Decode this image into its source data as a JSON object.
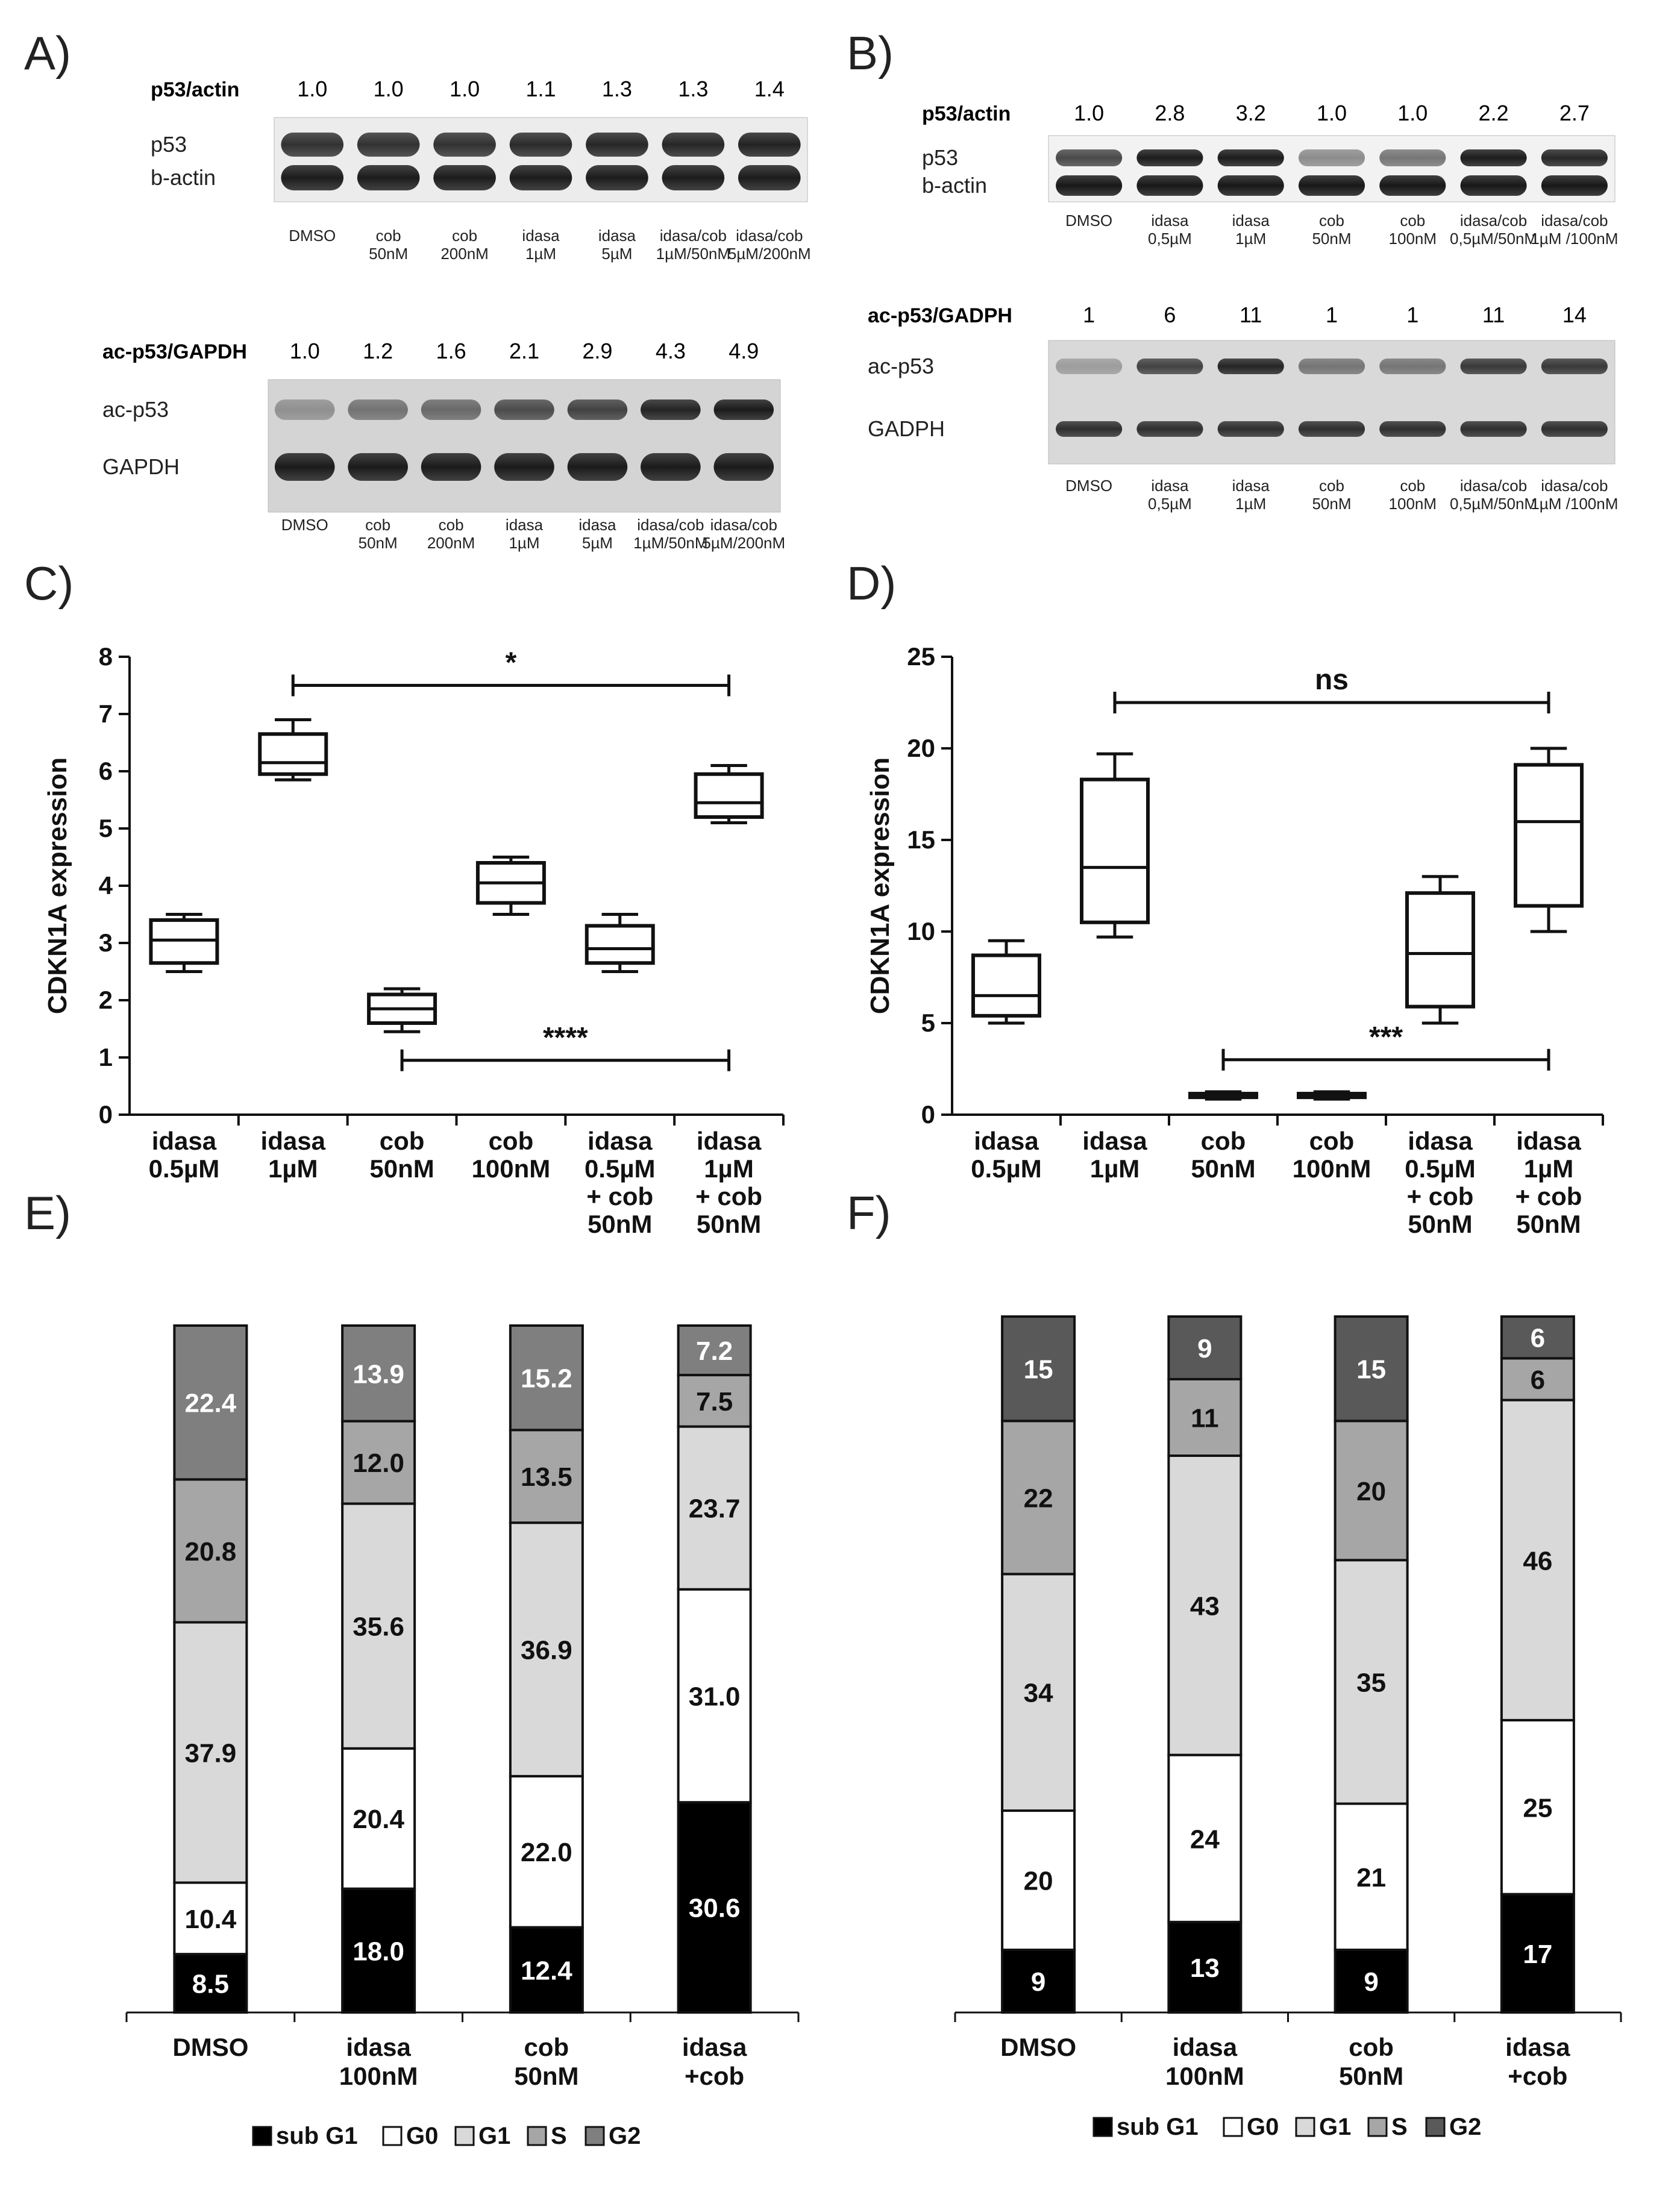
{
  "panels": {
    "A": {
      "letter": "A)",
      "blot1": {
        "ratio_label": "p53/actin",
        "ratios": [
          "1.0",
          "1.0",
          "1.0",
          "1.1",
          "1.3",
          "1.3",
          "1.4"
        ],
        "bands": [
          "p53",
          "b-actin"
        ],
        "lanes": [
          [
            "DMSO"
          ],
          [
            "cob",
            "50nM"
          ],
          [
            "cob",
            "200nM"
          ],
          [
            "idasa",
            "1µM"
          ],
          [
            "idasa",
            "5µM"
          ],
          [
            "idasa/cob",
            "1µM/50nM"
          ],
          [
            "idasa/cob",
            "5µM/200nM"
          ]
        ]
      },
      "blot2": {
        "ratio_label": "ac-p53/GAPDH",
        "ratios": [
          "1.0",
          "1.2",
          "1.6",
          "2.1",
          "2.9",
          "4.3",
          "4.9"
        ],
        "bands": [
          "ac-p53",
          "GAPDH"
        ],
        "lanes": [
          [
            "DMSO"
          ],
          [
            "cob",
            "50nM"
          ],
          [
            "cob",
            "200nM"
          ],
          [
            "idasa",
            "1µM"
          ],
          [
            "idasa",
            "5µM"
          ],
          [
            "idasa/cob",
            "1µM/50nM"
          ],
          [
            "idasa/cob",
            "5µM/200nM"
          ]
        ]
      }
    },
    "B": {
      "letter": "B)",
      "blot1": {
        "ratio_label": "p53/actin",
        "ratios": [
          "1.0",
          "2.8",
          "3.2",
          "1.0",
          "1.0",
          "2.2",
          "2.7"
        ],
        "bands": [
          "p53",
          "b-actin"
        ],
        "lanes": [
          [
            "DMSO"
          ],
          [
            "idasa",
            "0,5µM"
          ],
          [
            "idasa",
            "1µM"
          ],
          [
            "cob",
            "50nM"
          ],
          [
            "cob",
            "100nM"
          ],
          [
            "idasa/cob",
            "0,5µM/50nM"
          ],
          [
            "idasa/cob",
            "1µM /100nM"
          ]
        ]
      },
      "blot2": {
        "ratio_label": "ac-p53/GADPH",
        "ratios": [
          "1",
          "6",
          "11",
          "1",
          "1",
          "11",
          "14"
        ],
        "bands": [
          "ac-p53",
          "GADPH"
        ],
        "lanes": [
          [
            "DMSO"
          ],
          [
            "idasa",
            "0,5µM"
          ],
          [
            "idasa",
            "1µM"
          ],
          [
            "cob",
            "50nM"
          ],
          [
            "cob",
            "100nM"
          ],
          [
            "idasa/cob",
            "0,5µM/50nM"
          ],
          [
            "idasa/cob",
            "1µM /100nM"
          ]
        ]
      }
    },
    "C_letter": "C)",
    "D_letter": "D)",
    "E_letter": "E)",
    "F_letter": "F)"
  },
  "chart_data": [
    {
      "id": "C",
      "type": "boxplot",
      "ylabel": "CDKN1A expression",
      "ylim": [
        0,
        8
      ],
      "yticks": [
        0,
        1,
        2,
        3,
        4,
        5,
        6,
        7,
        8
      ],
      "categories": [
        [
          "idasa",
          "0.5µM"
        ],
        [
          "idasa",
          "1µM"
        ],
        [
          "cob",
          "50nM"
        ],
        [
          "cob",
          "100nM"
        ],
        [
          "idasa",
          "0.5µM",
          "+ cob",
          "50nM"
        ],
        [
          "idasa",
          "1µM",
          "+ cob",
          "50nM"
        ]
      ],
      "boxes": [
        {
          "min": 2.5,
          "q1": 2.65,
          "median": 3.05,
          "q3": 3.4,
          "max": 3.5
        },
        {
          "min": 5.85,
          "q1": 5.95,
          "median": 6.15,
          "q3": 6.65,
          "max": 6.9
        },
        {
          "min": 1.45,
          "q1": 1.6,
          "median": 1.85,
          "q3": 2.1,
          "max": 2.2
        },
        {
          "min": 3.5,
          "q1": 3.7,
          "median": 4.05,
          "q3": 4.4,
          "max": 4.5
        },
        {
          "min": 2.5,
          "q1": 2.65,
          "median": 2.9,
          "q3": 3.3,
          "max": 3.5
        },
        {
          "min": 5.1,
          "q1": 5.2,
          "median": 5.45,
          "q3": 5.95,
          "max": 6.1
        }
      ],
      "brackets": [
        {
          "from": 1,
          "to": 5,
          "y": 7.5,
          "label": "*"
        },
        {
          "from": 2,
          "to": 5,
          "y": 0.95,
          "label": "****"
        }
      ]
    },
    {
      "id": "D",
      "type": "boxplot",
      "ylabel": "CDKN1A expression",
      "ylim": [
        0,
        25
      ],
      "yticks": [
        0,
        5,
        10,
        15,
        20,
        25
      ],
      "categories": [
        [
          "idasa",
          "0.5µM"
        ],
        [
          "idasa",
          "1µM"
        ],
        [
          "cob",
          "50nM"
        ],
        [
          "cob",
          "100nM"
        ],
        [
          "idasa",
          "0.5µM",
          "+ cob",
          "50nM"
        ],
        [
          "idasa",
          "1µM",
          "+ cob",
          "50nM"
        ]
      ],
      "boxes": [
        {
          "min": 5.0,
          "q1": 5.4,
          "median": 6.5,
          "q3": 8.7,
          "max": 9.5
        },
        {
          "min": 9.7,
          "q1": 10.5,
          "median": 13.5,
          "q3": 18.3,
          "max": 19.7
        },
        {
          "min": 0.85,
          "q1": 0.95,
          "median": 1.05,
          "q3": 1.15,
          "max": 1.25
        },
        {
          "min": 0.85,
          "q1": 0.95,
          "median": 1.05,
          "q3": 1.15,
          "max": 1.25
        },
        {
          "min": 5.0,
          "q1": 5.9,
          "median": 8.8,
          "q3": 12.1,
          "max": 13.0
        },
        {
          "min": 10.0,
          "q1": 11.4,
          "median": 16.0,
          "q3": 19.1,
          "max": 20.0
        }
      ],
      "brackets": [
        {
          "from": 1,
          "to": 5,
          "y": 22.5,
          "label": "ns"
        },
        {
          "from": 2,
          "to": 5,
          "y": 3.0,
          "label": "***"
        }
      ]
    },
    {
      "id": "E",
      "type": "stacked-bar",
      "categories": [
        [
          "DMSO"
        ],
        [
          "idasa",
          "100nM"
        ],
        [
          "cob",
          "50nM"
        ],
        [
          "idasa",
          "+cob"
        ]
      ],
      "series": [
        {
          "name": "sub G1",
          "color": "#000000",
          "text_color": "#ffffff",
          "values": [
            8.5,
            18.0,
            12.4,
            30.6
          ]
        },
        {
          "name": "G0",
          "color": "#ffffff",
          "text_color": "#111111",
          "values": [
            10.4,
            20.4,
            22.0,
            31.0
          ]
        },
        {
          "name": "G1",
          "color": "#d9d9d9",
          "text_color": "#111111",
          "values": [
            37.9,
            35.6,
            36.9,
            23.7
          ]
        },
        {
          "name": "S",
          "color": "#a6a6a6",
          "text_color": "#111111",
          "values": [
            20.8,
            12.0,
            13.5,
            7.5
          ]
        },
        {
          "name": "G2",
          "color": "#7f7f7f",
          "text_color": "#ffffff",
          "values": [
            22.4,
            13.9,
            15.2,
            7.2
          ]
        }
      ],
      "labels": [
        [
          "8.5",
          "18.0",
          "12.4",
          "30.6"
        ],
        [
          "10.4",
          "20.4",
          "22.0",
          "31.0"
        ],
        [
          "37.9",
          "35.6",
          "36.9",
          "23.7"
        ],
        [
          "20.8",
          "12.0",
          "13.5",
          "7.5"
        ],
        [
          "22.4",
          "13.9",
          "15.2",
          "7.2"
        ]
      ],
      "legend": [
        "sub G1",
        "G0",
        "G1",
        "S",
        "G2"
      ]
    },
    {
      "id": "F",
      "type": "stacked-bar",
      "categories": [
        [
          "DMSO"
        ],
        [
          "idasa",
          "100nM"
        ],
        [
          "cob",
          "50nM"
        ],
        [
          "idasa",
          "+cob"
        ]
      ],
      "series": [
        {
          "name": "sub G1",
          "color": "#000000",
          "text_color": "#ffffff",
          "values": [
            9,
            13,
            9,
            17
          ]
        },
        {
          "name": "G0",
          "color": "#ffffff",
          "text_color": "#111111",
          "values": [
            20,
            24,
            21,
            25
          ]
        },
        {
          "name": "G1",
          "color": "#d9d9d9",
          "text_color": "#111111",
          "values": [
            34,
            43,
            35,
            46
          ]
        },
        {
          "name": "S",
          "color": "#a6a6a6",
          "text_color": "#111111",
          "values": [
            22,
            11,
            20,
            6
          ]
        },
        {
          "name": "G2",
          "color": "#595959",
          "text_color": "#ffffff",
          "values": [
            15,
            9,
            15,
            6
          ]
        }
      ],
      "labels": [
        [
          "9",
          "13",
          "9",
          "17"
        ],
        [
          "20",
          "24",
          "21",
          "25"
        ],
        [
          "34",
          "43",
          "35",
          "46"
        ],
        [
          "22",
          "11",
          "20",
          "6"
        ],
        [
          "15",
          "9",
          "15",
          "6"
        ]
      ],
      "legend": [
        "sub G1",
        "G0",
        "G1",
        "S",
        "G2"
      ]
    }
  ]
}
